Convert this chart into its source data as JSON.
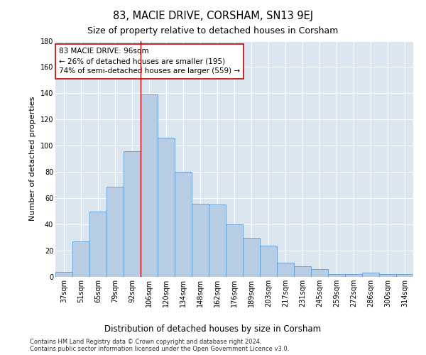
{
  "title": "83, MACIE DRIVE, CORSHAM, SN13 9EJ",
  "subtitle": "Size of property relative to detached houses in Corsham",
  "xlabel": "Distribution of detached houses by size in Corsham",
  "ylabel": "Number of detached properties",
  "categories": [
    "37sqm",
    "51sqm",
    "65sqm",
    "79sqm",
    "92sqm",
    "106sqm",
    "120sqm",
    "134sqm",
    "148sqm",
    "162sqm",
    "176sqm",
    "189sqm",
    "203sqm",
    "217sqm",
    "231sqm",
    "245sqm",
    "259sqm",
    "272sqm",
    "286sqm",
    "300sqm",
    "314sqm"
  ],
  "values": [
    4,
    27,
    50,
    69,
    96,
    139,
    106,
    80,
    56,
    55,
    40,
    30,
    24,
    11,
    8,
    6,
    2,
    2,
    3,
    2,
    2
  ],
  "bar_color": "#b8cce4",
  "bar_edge_color": "#5b9bd5",
  "vline_x_index": 4,
  "vline_color": "#c00000",
  "annotation_text": "83 MACIE DRIVE: 96sqm\n← 26% of detached houses are smaller (195)\n74% of semi-detached houses are larger (559) →",
  "annotation_box_facecolor": "#ffffff",
  "annotation_box_edgecolor": "#c00000",
  "ylim": [
    0,
    180
  ],
  "yticks": [
    0,
    20,
    40,
    60,
    80,
    100,
    120,
    140,
    160,
    180
  ],
  "bg_color": "#dce6f1",
  "footer_line1": "Contains HM Land Registry data © Crown copyright and database right 2024.",
  "footer_line2": "Contains public sector information licensed under the Open Government Licence v3.0.",
  "title_fontsize": 10.5,
  "subtitle_fontsize": 9,
  "xlabel_fontsize": 8.5,
  "ylabel_fontsize": 8,
  "tick_fontsize": 7,
  "annotation_fontsize": 7.5,
  "footer_fontsize": 6
}
